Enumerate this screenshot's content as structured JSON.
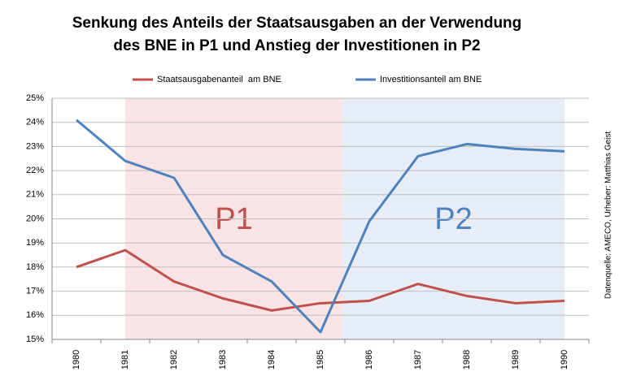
{
  "chart_data": {
    "type": "line",
    "title": "Senkung des Anteils der Staatsausgaben an der Verwendung",
    "subtitle": "des BNE in P1 und Anstieg der Investitionen in P2",
    "source": "Datenquelle: AMECO, Urheber: Matthias Geist",
    "categories": [
      "1980",
      "1981",
      "1982",
      "1983",
      "1984",
      "1985",
      "1986",
      "1987",
      "1988",
      "1989",
      "1990"
    ],
    "series": [
      {
        "name": "Staatsausgabenanteil  am BNE",
        "color": "#c0504d",
        "values": [
          18.0,
          18.7,
          17.4,
          16.7,
          16.2,
          16.5,
          16.6,
          17.3,
          16.8,
          16.5,
          16.6
        ]
      },
      {
        "name": "Investitionsanteil am BNE",
        "color": "#4f81bd",
        "values": [
          24.1,
          22.4,
          21.7,
          18.5,
          17.4,
          15.3,
          19.9,
          22.6,
          23.1,
          22.9,
          22.8
        ]
      }
    ],
    "regions": [
      {
        "label": "P1",
        "color": "#c0504d",
        "fill": "#f8e4e4"
      },
      {
        "label": "P2",
        "color": "#4f81bd",
        "fill": "#e6edf7"
      }
    ],
    "ylim": [
      15,
      25
    ],
    "yticks": [
      {
        "value": 15,
        "label": "15%"
      },
      {
        "value": 16,
        "label": "16%"
      },
      {
        "value": 17,
        "label": "17%"
      },
      {
        "value": 18,
        "label": "18%"
      },
      {
        "value": 19,
        "label": "19%"
      },
      {
        "value": 20,
        "label": "20%"
      },
      {
        "value": 21,
        "label": "21%"
      },
      {
        "value": 22,
        "label": "22%"
      },
      {
        "value": 23,
        "label": "23%"
      },
      {
        "value": 24,
        "label": "24%"
      },
      {
        "value": 25,
        "label": "25%"
      }
    ],
    "grid": true
  }
}
